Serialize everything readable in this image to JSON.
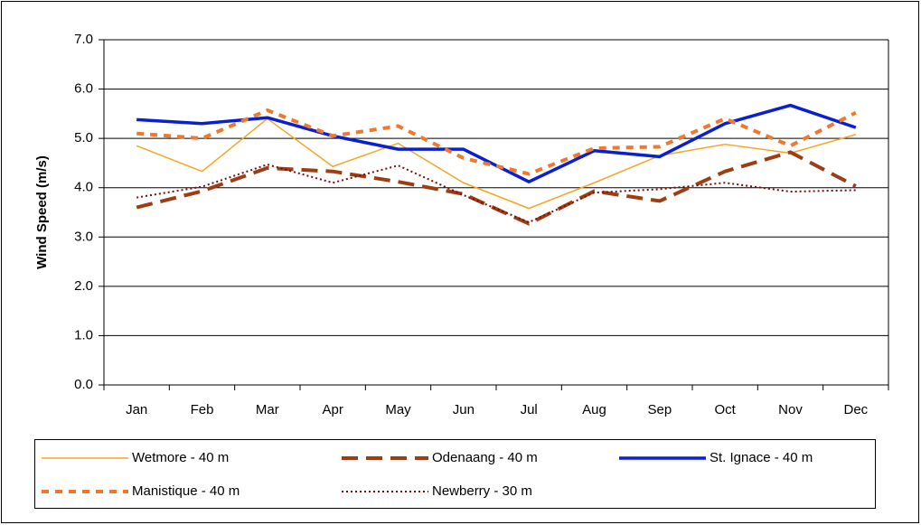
{
  "chart_data": {
    "type": "line",
    "y_label": "Wind Speed (m/s)",
    "categories": [
      "Jan",
      "Feb",
      "Mar",
      "Apr",
      "May",
      "Jun",
      "Jul",
      "Aug",
      "Sep",
      "Oct",
      "Nov",
      "Dec"
    ],
    "series": [
      {
        "name": "Wetmore - 40 m",
        "color": "#f5a623",
        "values": [
          4.85,
          4.33,
          5.4,
          4.43,
          4.9,
          4.1,
          3.58,
          4.1,
          4.65,
          4.88,
          4.7,
          5.08
        ]
      },
      {
        "name": "Odenaang - 40 m",
        "color": "#9c3e13",
        "values": [
          3.6,
          3.93,
          4.4,
          4.33,
          4.12,
          3.87,
          3.27,
          3.93,
          3.73,
          4.33,
          4.72,
          4.03
        ]
      },
      {
        "name": "St. Ignace - 40 m",
        "color": "#0a1ed2",
        "values": [
          5.38,
          5.3,
          5.42,
          5.05,
          4.78,
          4.78,
          4.12,
          4.75,
          4.63,
          5.3,
          5.67,
          5.22
        ]
      },
      {
        "name": "Manistique - 40 m",
        "color": "#f0782d",
        "values": [
          5.1,
          5.0,
          5.57,
          5.05,
          5.25,
          4.6,
          4.28,
          4.8,
          4.83,
          5.4,
          4.85,
          5.52
        ]
      },
      {
        "name": "Newberry - 30 m",
        "color": "#7a0c0c",
        "values": [
          3.8,
          4.02,
          4.47,
          4.1,
          4.45,
          3.85,
          3.3,
          3.9,
          3.97,
          4.1,
          3.92,
          3.95
        ]
      }
    ],
    "ylim": [
      0,
      7
    ],
    "yticks": [
      {
        "value": 0,
        "label": "0.0"
      },
      {
        "value": 1,
        "label": "1.0"
      },
      {
        "value": 2,
        "label": "2.0"
      },
      {
        "value": 3,
        "label": "3.0"
      },
      {
        "value": 4,
        "label": "4.0"
      },
      {
        "value": 5,
        "label": "5.0"
      },
      {
        "value": 6,
        "label": "6.0"
      },
      {
        "value": 7,
        "label": "7.0"
      }
    ],
    "grid": true,
    "legend": "bottom"
  }
}
